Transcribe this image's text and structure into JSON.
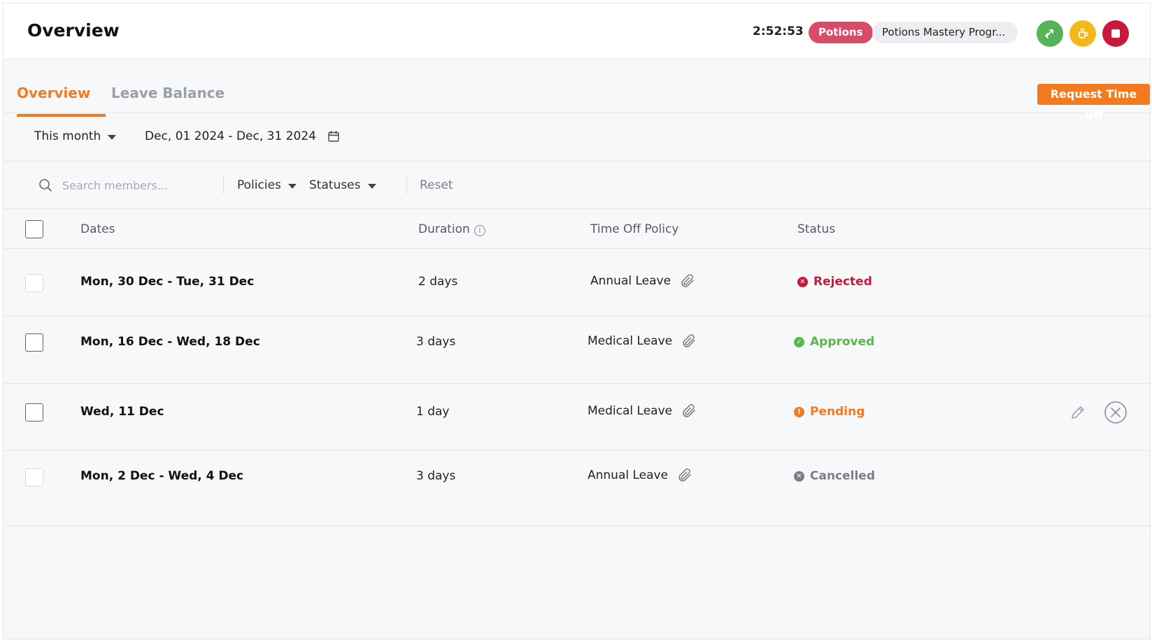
{
  "header": {
    "title": "Overview",
    "timer": "2:52:53",
    "project": "Potions",
    "task": "Potions Mastery Progr...",
    "colors": {
      "project": "#d94b6a",
      "start": "#56b35a",
      "break": "#f5b81b",
      "stop": "#c8193b"
    }
  },
  "tabs": [
    {
      "label": "Overview",
      "active": true
    },
    {
      "label": "Leave Balance",
      "active": false
    }
  ],
  "request_button": "Request Time Off",
  "date_filter": {
    "range": "This month",
    "dates": "Dec, 01 2024 - Dec, 31 2024"
  },
  "filters": {
    "search_placeholder": "Search members...",
    "policies": "Policies",
    "statuses": "Statuses",
    "reset": "Reset"
  },
  "table": {
    "columns": {
      "dates": "Dates",
      "duration": "Duration",
      "policy": "Time Off Policy",
      "status": "Status"
    },
    "rows": [
      {
        "dates": "Mon, 30 Dec - Tue, 31 Dec",
        "duration": "2 days",
        "policy": "Annual Leave",
        "status": "Rejected",
        "status_color": "#c8193b",
        "checkbox_enabled": false
      },
      {
        "dates": "Mon, 16 Dec - Wed, 18 Dec",
        "duration": "3 days",
        "policy": "Medical Leave",
        "status": "Approved",
        "status_color": "#58b947",
        "checkbox_enabled": true
      },
      {
        "dates": "Wed, 11 Dec",
        "duration": "1 day",
        "policy": "Medical Leave",
        "status": "Pending",
        "status_color": "#f47a20",
        "checkbox_enabled": true
      },
      {
        "dates": "Mon, 2 Dec - Wed, 4 Dec",
        "duration": "3 days",
        "policy": "Annual Leave",
        "status": "Cancelled",
        "status_color": "#7a7f85",
        "checkbox_enabled": false
      }
    ]
  }
}
